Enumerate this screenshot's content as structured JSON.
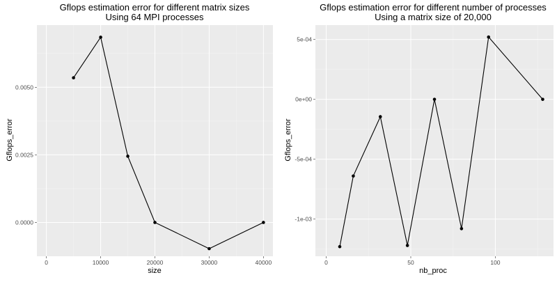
{
  "chart_data": [
    {
      "type": "line",
      "title": "Gflops estimation error for different matrix sizes",
      "subtitle": "Using 64 MPI processes",
      "xlabel": "size",
      "ylabel": "Gflops_error",
      "xlim": [
        -1750,
        41750
      ],
      "ylim": [
        -0.00125,
        0.0073
      ],
      "x_ticks": [
        0,
        10000,
        20000,
        30000,
        40000
      ],
      "x_tick_labels": [
        "0",
        "10000",
        "20000",
        "30000",
        "40000"
      ],
      "y_ticks": [
        0,
        0.0025,
        0.005
      ],
      "y_tick_labels": [
        "0.0000",
        "0.0025",
        "0.0050"
      ],
      "grid": true,
      "series": [
        {
          "x": [
            5000,
            10000,
            15000,
            20000,
            30000,
            40000
          ],
          "y": [
            0.00535,
            0.00685,
            0.00245,
            0.0,
            -0.00097,
            0.0
          ]
        }
      ]
    },
    {
      "type": "line",
      "title": "Gflops estimation error for different number of processes",
      "subtitle": "Using a matrix size of 20,000",
      "xlabel": "nb_proc",
      "ylabel": "Gflops_error",
      "xlim": [
        -6.4,
        134.4
      ],
      "ylim": [
        -0.00131,
        0.00062
      ],
      "x_ticks": [
        0,
        50,
        100
      ],
      "x_tick_labels": [
        "0",
        "50",
        "100"
      ],
      "y_ticks": [
        -0.001,
        -0.0005,
        0,
        0.0005
      ],
      "y_tick_labels": [
        "-1e-03",
        "-5e-04",
        "0e+00",
        "5e-04"
      ],
      "grid": true,
      "series": [
        {
          "x": [
            8,
            16,
            32,
            48,
            64,
            80,
            96,
            128
          ],
          "y": [
            -0.00123,
            -0.00064,
            -0.000145,
            -0.00122,
            0.0,
            -0.00108,
            0.00052,
            0.0
          ]
        }
      ]
    }
  ]
}
